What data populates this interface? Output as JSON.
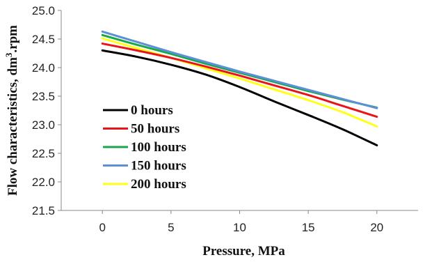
{
  "chart_data": {
    "type": "line",
    "xlabel": "Pressure, MPa",
    "ylabel": {
      "main": "Flow characteristics, dm",
      "sup": "3",
      "suffix": ".rpm"
    },
    "xlim": [
      -3,
      23
    ],
    "ylim": [
      21.5,
      25.0
    ],
    "xticks": [
      0,
      5,
      10,
      15,
      20
    ],
    "yticks": [
      21.5,
      22.0,
      22.5,
      23.0,
      23.5,
      24.0,
      24.5,
      25.0
    ],
    "grid": false,
    "legend_position": "center-left",
    "x": [
      0,
      2.5,
      5,
      7.5,
      10,
      12.5,
      15,
      17.5,
      20
    ],
    "series": [
      {
        "name": "0 hours",
        "color": "#000000",
        "values": [
          24.3,
          24.19,
          24.05,
          23.88,
          23.66,
          23.41,
          23.17,
          22.92,
          22.64
        ]
      },
      {
        "name": "50 hours",
        "color": "#e8141a",
        "values": [
          24.42,
          24.3,
          24.17,
          24.02,
          23.86,
          23.69,
          23.52,
          23.33,
          23.14
        ]
      },
      {
        "name": "100 hours",
        "color": "#1aa64b",
        "values": [
          24.57,
          24.4,
          24.24,
          24.07,
          23.91,
          23.75,
          23.59,
          23.44,
          23.3
        ]
      },
      {
        "name": "150 hours",
        "color": "#5b8fd6",
        "values": [
          24.63,
          24.45,
          24.27,
          24.1,
          23.93,
          23.77,
          23.61,
          23.45,
          23.29
        ]
      },
      {
        "name": "200 hours",
        "color": "#ffff1a",
        "values": [
          24.51,
          24.34,
          24.17,
          23.99,
          23.81,
          23.62,
          23.43,
          23.22,
          22.97
        ]
      }
    ]
  }
}
